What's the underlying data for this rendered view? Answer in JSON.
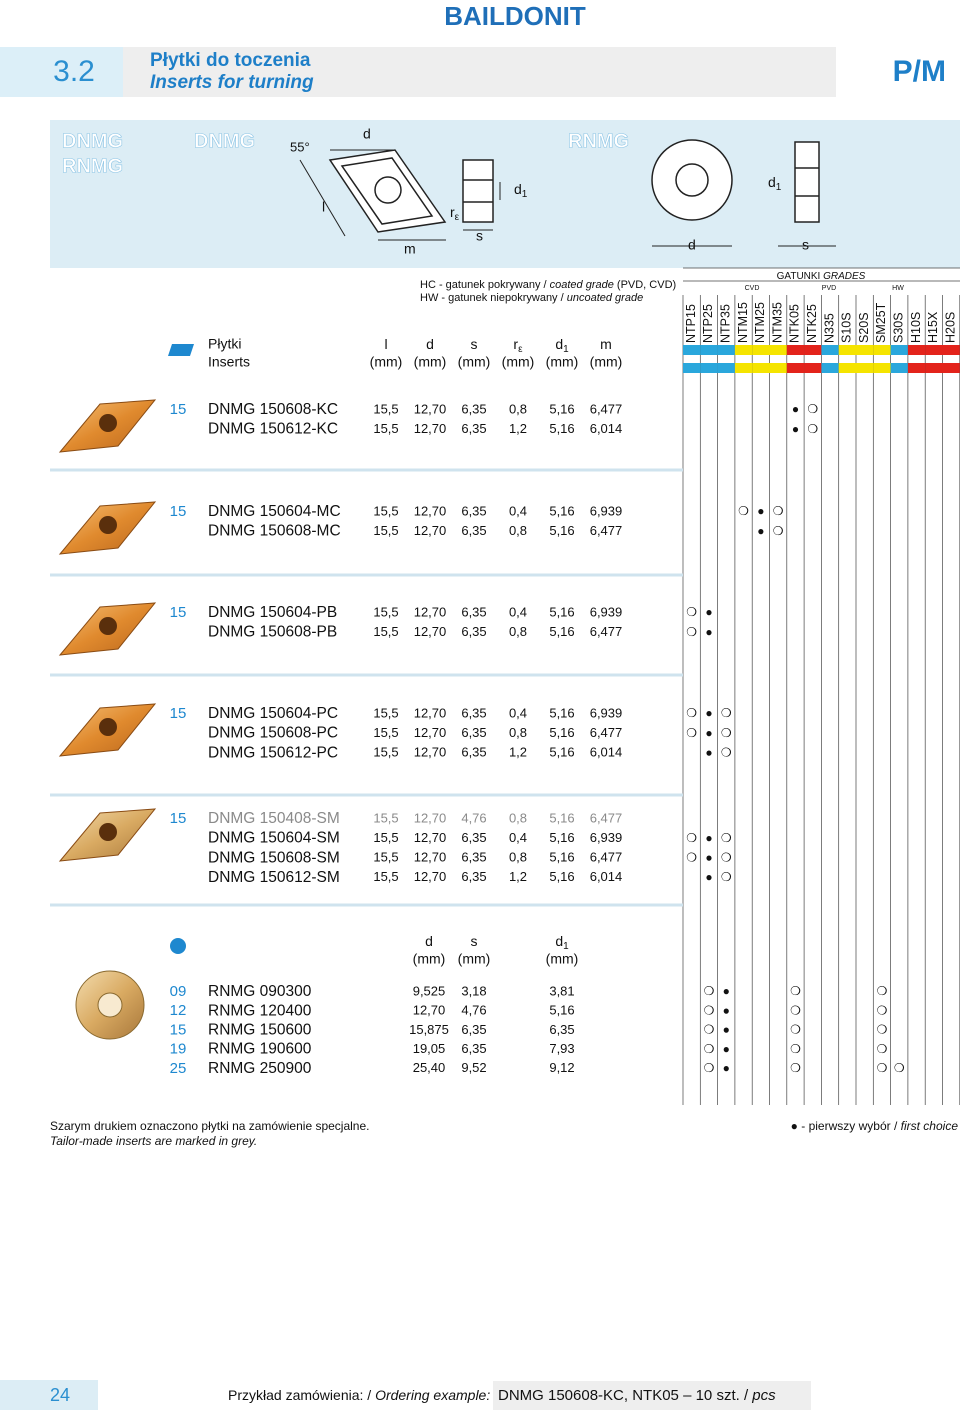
{
  "header": {
    "brand": "BAILDONIT",
    "section": "3.2",
    "title_pl": "Płytki do toczenia",
    "title_en": "Inserts for turning",
    "code": "P/M"
  },
  "diagram": {
    "families": [
      "DNMG",
      "RNMG"
    ],
    "dnmg": {
      "title": "DNMG",
      "angle": "55°",
      "d": "d",
      "l": "l",
      "m": "m",
      "r": {
        "base": "r",
        "sub": "ε"
      },
      "s": "s",
      "d1": {
        "base": "d",
        "sub": "1"
      }
    },
    "rnmg": {
      "title": "RNMG",
      "d1": {
        "base": "d",
        "sub": "1"
      },
      "d": "d",
      "s": "s"
    }
  },
  "legend": {
    "hc": {
      "pl": "HC - gatunek pokrywany /",
      "en": "coated grade",
      "extra": "(PVD, CVD)"
    },
    "hw": {
      "pl": "HW - gatunek niepokrywany /",
      "en": "uncoated grade"
    }
  },
  "grades": {
    "title": "GATUNKI",
    "title_en": "GRADES",
    "groups": [
      "CVD",
      "PVD",
      "HW"
    ],
    "columns": [
      {
        "name": "NTP15",
        "color": "#2aa7dc"
      },
      {
        "name": "NTP25",
        "color": "#2aa7dc"
      },
      {
        "name": "NTP35",
        "color": "#2aa7dc"
      },
      {
        "name": "NTM15",
        "color": "#f5e400"
      },
      {
        "name": "NTM25",
        "color": "#f5e400"
      },
      {
        "name": "NTM35",
        "color": "#f5e400"
      },
      {
        "name": "NTK05",
        "color": "#e3231b"
      },
      {
        "name": "NTK25",
        "color": "#e3231b"
      },
      {
        "name": "N335",
        "color": "#2aa7dc"
      },
      {
        "name": "S10S",
        "color": "#f5e400"
      },
      {
        "name": "S20S",
        "color": "#f5e400"
      },
      {
        "name": "SM25T",
        "color": "#f5e400"
      },
      {
        "name": "S30S",
        "color": "#2aa7dc"
      },
      {
        "name": "H10S",
        "color": "#e3231b"
      },
      {
        "name": "H15X",
        "color": "#e3231b"
      },
      {
        "name": "H20S",
        "color": "#e3231b"
      }
    ]
  },
  "columns": {
    "inserts_pl": "Płytki",
    "inserts_en": "Inserts",
    "unit": "(mm)",
    "dims": [
      {
        "base": "l"
      },
      {
        "base": "d"
      },
      {
        "base": "s"
      },
      {
        "base": "r",
        "sub": "ε"
      },
      {
        "base": "d",
        "sub": "1"
      },
      {
        "base": "m"
      }
    ]
  },
  "dnmg_groups": [
    {
      "size": "15",
      "rows": [
        {
          "designation": "DNMG 150608-KC",
          "values": [
            "15,5",
            "12,70",
            "6,35",
            "0,8",
            "5,16",
            "6,477"
          ],
          "tailor_made": false,
          "marks": [
            null,
            null,
            null,
            null,
            null,
            null,
            "●",
            "❍",
            null,
            null,
            null,
            null,
            null,
            null,
            null,
            null
          ]
        },
        {
          "designation": "DNMG 150612-KC",
          "values": [
            "15,5",
            "12,70",
            "6,35",
            "1,2",
            "5,16",
            "6,014"
          ],
          "tailor_made": false,
          "marks": [
            null,
            null,
            null,
            null,
            null,
            null,
            "●",
            "❍",
            null,
            null,
            null,
            null,
            null,
            null,
            null,
            null
          ]
        }
      ]
    },
    {
      "size": "15",
      "rows": [
        {
          "designation": "DNMG 150604-MC",
          "values": [
            "15,5",
            "12,70",
            "6,35",
            "0,4",
            "5,16",
            "6,939"
          ],
          "tailor_made": false,
          "marks": [
            null,
            null,
            null,
            "❍",
            "●",
            "❍",
            null,
            null,
            null,
            null,
            null,
            null,
            null,
            null,
            null,
            null
          ]
        },
        {
          "designation": "DNMG 150608-MC",
          "values": [
            "15,5",
            "12,70",
            "6,35",
            "0,8",
            "5,16",
            "6,477"
          ],
          "tailor_made": false,
          "marks": [
            null,
            null,
            null,
            null,
            "●",
            "❍",
            null,
            null,
            null,
            null,
            null,
            null,
            null,
            null,
            null,
            null
          ]
        }
      ]
    },
    {
      "size": "15",
      "rows": [
        {
          "designation": "DNMG 150604-PB",
          "values": [
            "15,5",
            "12,70",
            "6,35",
            "0,4",
            "5,16",
            "6,939"
          ],
          "tailor_made": false,
          "marks": [
            "❍",
            "●",
            null,
            null,
            null,
            null,
            null,
            null,
            null,
            null,
            null,
            null,
            null,
            null,
            null,
            null
          ]
        },
        {
          "designation": "DNMG 150608-PB",
          "values": [
            "15,5",
            "12,70",
            "6,35",
            "0,8",
            "5,16",
            "6,477"
          ],
          "tailor_made": false,
          "marks": [
            "❍",
            "●",
            null,
            null,
            null,
            null,
            null,
            null,
            null,
            null,
            null,
            null,
            null,
            null,
            null,
            null
          ]
        }
      ]
    },
    {
      "size": "15",
      "rows": [
        {
          "designation": "DNMG 150604-PC",
          "values": [
            "15,5",
            "12,70",
            "6,35",
            "0,4",
            "5,16",
            "6,939"
          ],
          "tailor_made": false,
          "marks": [
            "❍",
            "●",
            "❍",
            null,
            null,
            null,
            null,
            null,
            null,
            null,
            null,
            null,
            null,
            null,
            null,
            null
          ]
        },
        {
          "designation": "DNMG 150608-PC",
          "values": [
            "15,5",
            "12,70",
            "6,35",
            "0,8",
            "5,16",
            "6,477"
          ],
          "tailor_made": false,
          "marks": [
            "❍",
            "●",
            "❍",
            null,
            null,
            null,
            null,
            null,
            null,
            null,
            null,
            null,
            null,
            null,
            null,
            null
          ]
        },
        {
          "designation": "DNMG 150612-PC",
          "values": [
            "15,5",
            "12,70",
            "6,35",
            "1,2",
            "5,16",
            "6,014"
          ],
          "tailor_made": false,
          "marks": [
            null,
            "●",
            "❍",
            null,
            null,
            null,
            null,
            null,
            null,
            null,
            null,
            null,
            null,
            null,
            null,
            null
          ]
        }
      ]
    },
    {
      "size": "15",
      "rows": [
        {
          "designation": "DNMG 150408-SM",
          "values": [
            "15,5",
            "12,70",
            "4,76",
            "0,8",
            "5,16",
            "6,477"
          ],
          "tailor_made": true,
          "marks": [
            null,
            null,
            null,
            null,
            null,
            null,
            null,
            null,
            null,
            null,
            null,
            null,
            null,
            null,
            null,
            null
          ]
        },
        {
          "designation": "DNMG 150604-SM",
          "values": [
            "15,5",
            "12,70",
            "6,35",
            "0,4",
            "5,16",
            "6,939"
          ],
          "tailor_made": false,
          "marks": [
            "❍",
            "●",
            "❍",
            null,
            null,
            null,
            null,
            null,
            null,
            null,
            null,
            null,
            null,
            null,
            null,
            null
          ]
        },
        {
          "designation": "DNMG 150608-SM",
          "values": [
            "15,5",
            "12,70",
            "6,35",
            "0,8",
            "5,16",
            "6,477"
          ],
          "tailor_made": false,
          "marks": [
            "❍",
            "●",
            "❍",
            null,
            null,
            null,
            null,
            null,
            null,
            null,
            null,
            null,
            null,
            null,
            null,
            null
          ]
        },
        {
          "designation": "DNMG 150612-SM",
          "values": [
            "15,5",
            "12,70",
            "6,35",
            "1,2",
            "5,16",
            "6,014"
          ],
          "tailor_made": false,
          "marks": [
            null,
            "●",
            "❍",
            null,
            null,
            null,
            null,
            null,
            null,
            null,
            null,
            null,
            null,
            null,
            null,
            null
          ]
        }
      ]
    }
  ],
  "rnmg": {
    "unit": "(mm)",
    "dims": [
      {
        "base": "d"
      },
      {
        "base": "s"
      },
      {
        "base": "d",
        "sub": "1"
      }
    ],
    "rows": [
      {
        "size": "09",
        "designation": "RNMG 090300",
        "values": [
          "9,525",
          "3,18",
          "3,81"
        ],
        "marks": [
          null,
          "❍",
          "●",
          null,
          null,
          null,
          "❍",
          null,
          null,
          null,
          null,
          "❍",
          null,
          null,
          null,
          null
        ]
      },
      {
        "size": "12",
        "designation": "RNMG 120400",
        "values": [
          "12,70",
          "4,76",
          "5,16"
        ],
        "marks": [
          null,
          "❍",
          "●",
          null,
          null,
          null,
          "❍",
          null,
          null,
          null,
          null,
          "❍",
          null,
          null,
          null,
          null
        ]
      },
      {
        "size": "15",
        "designation": "RNMG 150600",
        "values": [
          "15,875",
          "6,35",
          "6,35"
        ],
        "marks": [
          null,
          "❍",
          "●",
          null,
          null,
          null,
          "❍",
          null,
          null,
          null,
          null,
          "❍",
          null,
          null,
          null,
          null
        ]
      },
      {
        "size": "19",
        "designation": "RNMG 190600",
        "values": [
          "19,05",
          "6,35",
          "7,93"
        ],
        "marks": [
          null,
          "❍",
          "●",
          null,
          null,
          null,
          "❍",
          null,
          null,
          null,
          null,
          "❍",
          null,
          null,
          null,
          null
        ]
      },
      {
        "size": "25",
        "designation": "RNMG 250900",
        "values": [
          "25,40",
          "9,52",
          "9,12"
        ],
        "marks": [
          null,
          "❍",
          "●",
          null,
          null,
          null,
          "❍",
          null,
          null,
          null,
          null,
          "❍",
          "❍",
          null,
          null,
          null
        ]
      }
    ]
  },
  "footer": {
    "note_pl": "Szarym drukiem oznaczono płytki na zamówienie specjalne.",
    "note_en": "Tailor-made inserts are marked in grey.",
    "choice_symbol": "●",
    "choice_pl": "- pierwszy wybór /",
    "choice_en": "first choice",
    "page": "24",
    "example_pl": "Przykład zamówienia: /",
    "example_en": "Ordering example:",
    "example_code": "DNMG 150608-KC, NTK05",
    "example_qty": "– 10 szt. /",
    "example_unit": "pcs"
  }
}
